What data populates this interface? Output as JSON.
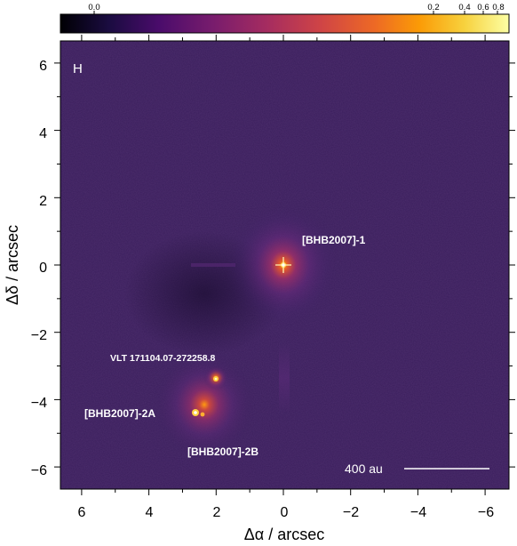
{
  "colorbar": {
    "ticks": [
      "0.0",
      "0.2",
      "0.4",
      "0.6",
      "0.8"
    ],
    "colors": [
      "#000004",
      "#1b0c41",
      "#4a0c6b",
      "#781c6d",
      "#a52c60",
      "#cf4446",
      "#ed6925",
      "#fb9b06",
      "#f7d13d",
      "#fcffa4"
    ]
  },
  "panel": {
    "band_label": "H",
    "scalebar_label": "400 au"
  },
  "sources": [
    {
      "label": "[BHB2007]-1"
    },
    {
      "label": "VLT 171104.07-272258.8"
    },
    {
      "label": "[BHB2007]-2A"
    },
    {
      "label": "[BHB2007]-2B"
    }
  ],
  "axes": {
    "xlabel": "Δα / arcsec",
    "ylabel": "Δδ / arcsec",
    "xticks": [
      "6",
      "4",
      "2",
      "0",
      "−2",
      "−4",
      "−6"
    ],
    "yticks": [
      "6",
      "4",
      "2",
      "0",
      "−2",
      "−4",
      "−6"
    ]
  }
}
